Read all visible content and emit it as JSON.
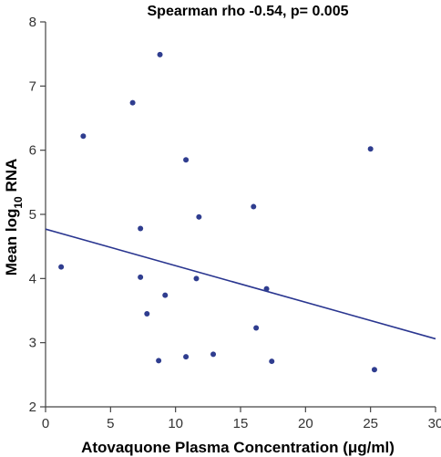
{
  "chart_data": {
    "type": "scatter",
    "title": "Spearman rho -0.54, p= 0.005",
    "xlabel": "Atovaquone Plasma Concentration (μg/ml)",
    "ylabel_parts": {
      "before": "Mean log",
      "sub": "10",
      "after": " RNA"
    },
    "xlim": [
      0,
      30
    ],
    "ylim": [
      2,
      8
    ],
    "x_ticks": [
      0,
      5,
      10,
      15,
      20,
      25,
      30
    ],
    "y_ticks": [
      2,
      3,
      4,
      5,
      6,
      7,
      8
    ],
    "grid": false,
    "legend": "none",
    "colors": {
      "points": "#2f3d8f",
      "trendline": "#2a3690",
      "axis": "#444444"
    },
    "points": [
      {
        "x": 1.2,
        "y": 4.18
      },
      {
        "x": 2.9,
        "y": 6.22
      },
      {
        "x": 6.7,
        "y": 6.74
      },
      {
        "x": 7.3,
        "y": 4.78
      },
      {
        "x": 7.3,
        "y": 4.02
      },
      {
        "x": 7.8,
        "y": 3.45
      },
      {
        "x": 8.7,
        "y": 2.72
      },
      {
        "x": 8.8,
        "y": 7.49
      },
      {
        "x": 9.2,
        "y": 3.74
      },
      {
        "x": 10.8,
        "y": 5.85
      },
      {
        "x": 10.8,
        "y": 2.78
      },
      {
        "x": 11.6,
        "y": 4.0
      },
      {
        "x": 11.8,
        "y": 4.96
      },
      {
        "x": 12.9,
        "y": 2.82
      },
      {
        "x": 16.0,
        "y": 5.12
      },
      {
        "x": 16.2,
        "y": 3.23
      },
      {
        "x": 17.0,
        "y": 3.84
      },
      {
        "x": 17.4,
        "y": 2.71
      },
      {
        "x": 25.0,
        "y": 6.02
      },
      {
        "x": 25.3,
        "y": 2.58
      }
    ],
    "trendline": {
      "x": [
        0,
        30
      ],
      "y": [
        4.77,
        3.06
      ]
    }
  }
}
